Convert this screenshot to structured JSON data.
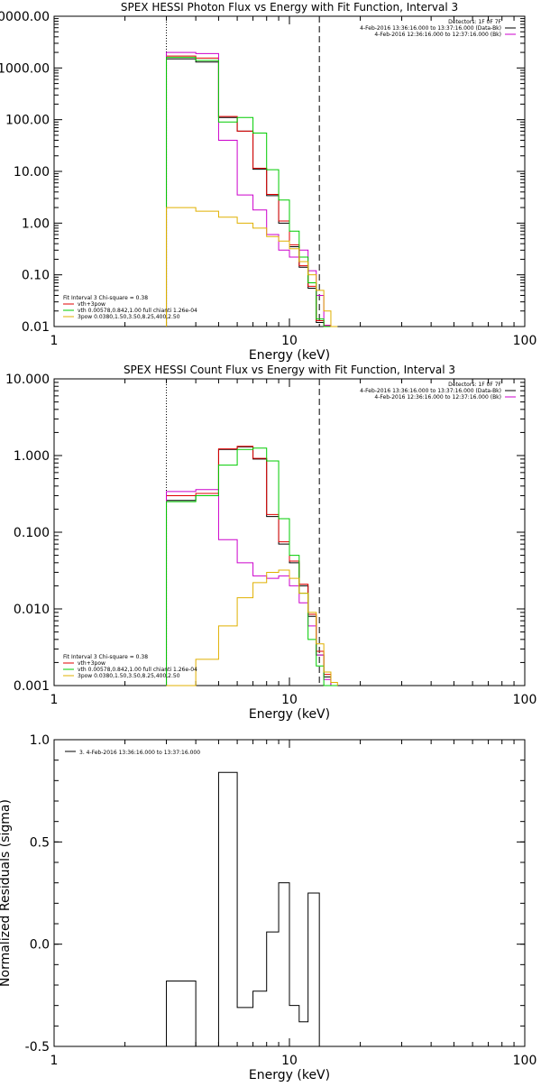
{
  "colors": {
    "axes": "#000000",
    "black": "#000000",
    "red": "#e00000",
    "green": "#00cc00",
    "magenta": "#cc00cc",
    "orange": "#e0b000"
  },
  "chart_data": [
    {
      "type": "line",
      "title": "SPEX HESSI Photon Flux vs Energy with Fit Function, Interval 3",
      "xlabel": "Energy (keV)",
      "ylabel": "",
      "xscale": "log",
      "yscale": "log",
      "xlim": [
        1,
        100
      ],
      "ylim": [
        0.01,
        10000
      ],
      "xticks": [
        1,
        10,
        100
      ],
      "xticklabels": [
        "1",
        "10",
        "100"
      ],
      "yticks": [
        0.01,
        0.1,
        1,
        10,
        100,
        1000,
        10000
      ],
      "yticklabels": [
        "0.01",
        "0.10",
        "1.00",
        "10.00",
        "100.00",
        "1000.00",
        "10000.00"
      ],
      "vlines": [
        {
          "x": 3.0,
          "style": "dotted"
        },
        {
          "x": 13.4,
          "style": "dashed"
        }
      ],
      "legend_top": [
        {
          "text": "Detectors: 1F 0F 7F",
          "color": ""
        },
        {
          "text": "4-Feb-2016 13:36:16.000 to 13:37:16.000 (Data-Bk)",
          "color": "black"
        },
        {
          "text": "4-Feb-2016 12:36:16.000 to 12:37:16.000 (Bk)",
          "color": "magenta"
        }
      ],
      "legend_bottom": [
        {
          "text": "Fit Interval 3   Chi-square = 0.38",
          "color": ""
        },
        {
          "text": "vth+3pow",
          "color": "red"
        },
        {
          "text": "vth 0.00578,0.842,1.00  full chianti 1.26e-04",
          "color": "green"
        },
        {
          "text": "3pow 0.0380,1.50,3.50,8.25,400,2.50",
          "color": "orange"
        }
      ],
      "edges": [
        3.0,
        4.0,
        5.0,
        6.0,
        7.0,
        8.0,
        9.0,
        10.0,
        11.0,
        12.0,
        13.0,
        14.0,
        15.0,
        16.0
      ],
      "series": [
        {
          "color": "black",
          "values": [
            1500,
            1300,
            110,
            60,
            11,
            3.4,
            1.0,
            0.35,
            0.14,
            0.055,
            0.012,
            0.0101,
            0.0
          ]
        },
        {
          "color": "red",
          "values": [
            1700,
            1550,
            115,
            60,
            11.5,
            3.6,
            1.1,
            0.38,
            0.15,
            0.06,
            0.013,
            0.0105,
            0.0
          ]
        },
        {
          "color": "magenta",
          "values": [
            2000,
            1900,
            40,
            3.5,
            1.8,
            0.6,
            0.3,
            0.22,
            0.3,
            0.12,
            0.04,
            0.0105,
            0.0
          ]
        },
        {
          "color": "green",
          "values": [
            1600,
            1400,
            90,
            110,
            55,
            10.8,
            2.8,
            0.7,
            0.22,
            0.07,
            0.014,
            0.0,
            0.0
          ]
        },
        {
          "color": "orange",
          "values": [
            2.0,
            1.7,
            1.3,
            1.0,
            0.8,
            0.55,
            0.45,
            0.32,
            0.18,
            0.1,
            0.05,
            0.02,
            0.0
          ]
        }
      ]
    },
    {
      "type": "line",
      "title": "SPEX HESSI Count Flux vs Energy with Fit Function, Interval 3",
      "xlabel": "Energy (keV)",
      "ylabel": "",
      "xscale": "log",
      "yscale": "log",
      "xlim": [
        1,
        100
      ],
      "ylim": [
        0.001,
        10
      ],
      "xticks": [
        1,
        10,
        100
      ],
      "xticklabels": [
        "1",
        "10",
        "100"
      ],
      "yticks": [
        0.001,
        0.01,
        0.1,
        1,
        10
      ],
      "yticklabels": [
        "0.001",
        "0.010",
        "0.100",
        "1.000",
        "10.000"
      ],
      "vlines": [
        {
          "x": 3.0,
          "style": "dotted"
        },
        {
          "x": 13.4,
          "style": "dashed"
        }
      ],
      "legend_top": [
        {
          "text": "Detectors: 1F 0F 7F",
          "color": ""
        },
        {
          "text": "4-Feb-2016 13:36:16.000 to 13:37:16.000 (Data-Bk)",
          "color": "black"
        },
        {
          "text": "4-Feb-2016 12:36:16.000 to 12:37:16.000 (Bk)",
          "color": "magenta"
        }
      ],
      "legend_bottom": [
        {
          "text": "Fit Interval 3   Chi-square = 0.38",
          "color": ""
        },
        {
          "text": "vth+3pow",
          "color": "red"
        },
        {
          "text": "vth 0.00578,0.842,1.00  full chianti 1.26e-04",
          "color": "green"
        },
        {
          "text": "3pow 0.0380,1.50,3.50,8.25,400,2.50",
          "color": "orange"
        }
      ],
      "edges": [
        3.0,
        4.0,
        5.0,
        6.0,
        7.0,
        8.0,
        9.0,
        10.0,
        11.0,
        12.0,
        13.0,
        14.0,
        15.0,
        16.0
      ],
      "series": [
        {
          "color": "black",
          "values": [
            0.26,
            0.3,
            1.2,
            1.3,
            0.9,
            0.16,
            0.07,
            0.04,
            0.02,
            0.008,
            0.0025,
            0.0013,
            0.0
          ]
        },
        {
          "color": "red",
          "values": [
            0.3,
            0.32,
            1.22,
            1.32,
            0.92,
            0.17,
            0.075,
            0.042,
            0.021,
            0.0085,
            0.0028,
            0.0014,
            0.0
          ]
        },
        {
          "color": "magenta",
          "values": [
            0.34,
            0.36,
            0.08,
            0.04,
            0.027,
            0.025,
            0.027,
            0.02,
            0.012,
            0.006,
            0.0025,
            0.0012,
            0.0
          ]
        },
        {
          "color": "green",
          "values": [
            0.25,
            0.3,
            0.75,
            1.2,
            1.25,
            0.85,
            0.15,
            0.05,
            0.016,
            0.004,
            0.0018,
            0.0,
            0.0
          ]
        },
        {
          "color": "orange",
          "values": [
            0.0009,
            0.0022,
            0.006,
            0.014,
            0.022,
            0.03,
            0.032,
            0.025,
            0.016,
            0.009,
            0.0035,
            0.0015,
            0.0011
          ]
        }
      ]
    },
    {
      "type": "line",
      "title": "",
      "xlabel": "Energy (keV)",
      "ylabel": "Normalized Residuals (sigma)",
      "xscale": "log",
      "yscale": "linear",
      "xlim": [
        1,
        100
      ],
      "ylim": [
        -0.5,
        1.0
      ],
      "xticks": [
        1,
        10,
        100
      ],
      "xticklabels": [
        "1",
        "10",
        "100"
      ],
      "yticks": [
        -0.5,
        0.0,
        0.5,
        1.0
      ],
      "yticklabels": [
        "-0.5",
        "0.0",
        "0.5",
        "1.0"
      ],
      "vlines": [],
      "legend_top": [
        {
          "text": "3.  4-Feb-2016 13:36:16.000 to 13:37:16.000",
          "color": "black"
        }
      ],
      "legend_bottom": [],
      "edges": [
        3.0,
        4.0,
        5.0,
        6.0,
        7.0,
        8.0,
        9.0,
        10.0,
        11.0,
        12.0,
        13.4
      ],
      "series": [
        {
          "color": "black",
          "values": [
            -0.18,
            -0.5,
            0.84,
            -0.31,
            -0.23,
            0.06,
            0.3,
            -0.3,
            -0.38,
            0.25
          ]
        }
      ]
    }
  ]
}
